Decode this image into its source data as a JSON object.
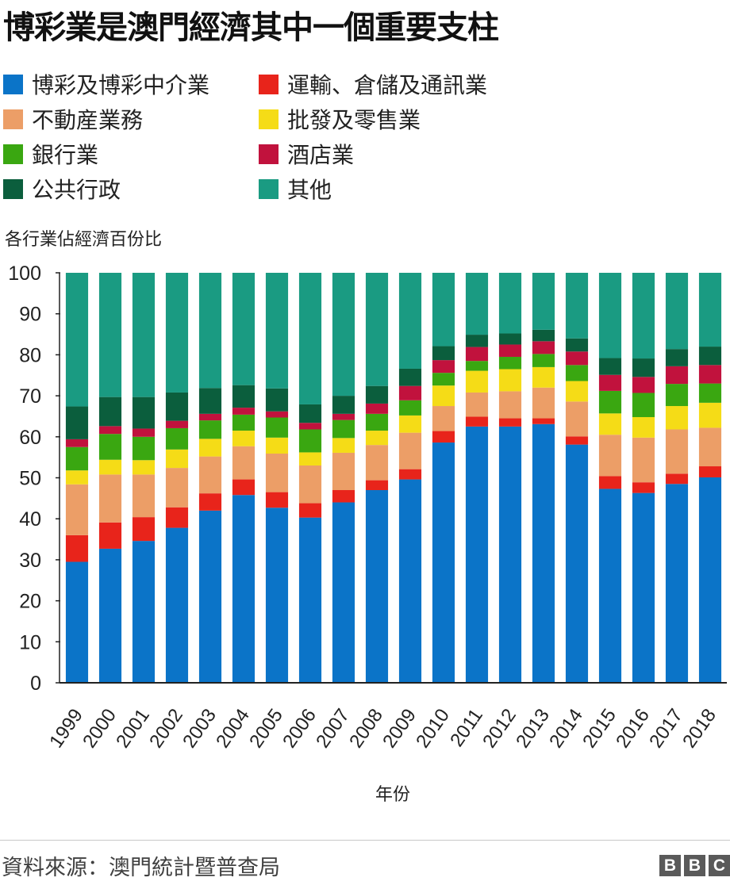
{
  "title": "博彩業是澳門經濟其中一個重要支柱",
  "source": "資料來源：澳門統計暨普查局",
  "logo": [
    "B",
    "B",
    "C"
  ],
  "chart_data": {
    "type": "bar",
    "stacked": true,
    "ylabel": "各行業佔經濟百份比",
    "xlabel": "年份",
    "ylim": [
      0,
      100
    ],
    "yticks": [
      0,
      10,
      20,
      30,
      40,
      50,
      60,
      70,
      80,
      90,
      100
    ],
    "grid": false,
    "legend_position": "top",
    "categories": [
      "1999",
      "2000",
      "2001",
      "2002",
      "2003",
      "2004",
      "2005",
      "2006",
      "2007",
      "2008",
      "2009",
      "2010",
      "2011",
      "2012",
      "2013",
      "2014",
      "2015",
      "2016",
      "2017",
      "2018"
    ],
    "series": [
      {
        "name": "博彩及博彩中介業",
        "color": "#0b74c8",
        "values": [
          29.5,
          32.7,
          34.6,
          37.8,
          42.0,
          45.8,
          42.7,
          40.3,
          44.0,
          47.0,
          49.6,
          58.6,
          62.5,
          62.5,
          63.1,
          58.1,
          47.3,
          46.3,
          48.5,
          50.1
        ]
      },
      {
        "name": "運輸、倉儲及通訊業",
        "color": "#e8241b",
        "values": [
          6.5,
          6.4,
          5.8,
          5.0,
          4.2,
          3.8,
          3.8,
          3.5,
          3.0,
          2.4,
          2.5,
          2.8,
          2.4,
          2.0,
          1.4,
          2.0,
          3.1,
          2.6,
          2.5,
          2.7
        ]
      },
      {
        "name": "不動産業務",
        "color": "#ec9e67",
        "values": [
          12.4,
          11.7,
          10.4,
          9.6,
          9.0,
          8.1,
          9.4,
          9.2,
          9.1,
          8.6,
          8.9,
          6.1,
          5.9,
          6.6,
          7.5,
          8.5,
          10.1,
          10.9,
          10.8,
          9.4
        ]
      },
      {
        "name": "批發及零售業",
        "color": "#f5dc17",
        "values": [
          3.4,
          3.6,
          3.5,
          4.5,
          4.3,
          3.8,
          3.9,
          3.2,
          3.6,
          3.5,
          4.2,
          5.0,
          5.3,
          5.4,
          5.0,
          5.0,
          5.2,
          5.0,
          5.7,
          6.1
        ]
      },
      {
        "name": "銀行業",
        "color": "#3aa711",
        "values": [
          5.7,
          6.3,
          5.7,
          5.2,
          4.5,
          3.9,
          4.9,
          5.6,
          4.4,
          4.1,
          3.7,
          3.1,
          2.4,
          3.0,
          3.2,
          3.9,
          5.5,
          5.9,
          5.4,
          4.7
        ]
      },
      {
        "name": "酒店業",
        "color": "#c1123d",
        "values": [
          1.9,
          1.9,
          2.0,
          1.8,
          1.6,
          1.7,
          1.5,
          1.6,
          1.5,
          2.5,
          3.5,
          3.1,
          3.4,
          3.0,
          3.1,
          3.3,
          3.9,
          3.9,
          4.3,
          4.5
        ]
      },
      {
        "name": "公共行政",
        "color": "#0b5e3d",
        "values": [
          8.0,
          7.1,
          7.7,
          6.9,
          6.3,
          5.5,
          5.6,
          4.5,
          4.4,
          4.3,
          4.2,
          3.4,
          3.0,
          2.7,
          2.8,
          3.2,
          4.1,
          4.5,
          4.2,
          4.5
        ]
      },
      {
        "name": "其他",
        "color": "#1a9b82",
        "values": [
          32.6,
          30.3,
          30.3,
          29.2,
          28.1,
          27.4,
          28.2,
          32.1,
          30.0,
          27.6,
          23.4,
          17.9,
          15.1,
          14.8,
          13.9,
          16.0,
          20.8,
          20.9,
          18.6,
          18.0
        ]
      }
    ]
  },
  "legend": [
    {
      "label": "博彩及博彩中介業",
      "color": "#0b74c8"
    },
    {
      "label": "運輸、倉儲及通訊業",
      "color": "#e8241b"
    },
    {
      "label": "不動産業務",
      "color": "#ec9e67"
    },
    {
      "label": "批發及零售業",
      "color": "#f5dc17"
    },
    {
      "label": "銀行業",
      "color": "#3aa711"
    },
    {
      "label": "酒店業",
      "color": "#c1123d"
    },
    {
      "label": "公共行政",
      "color": "#0b5e3d"
    },
    {
      "label": "其他",
      "color": "#1a9b82"
    }
  ]
}
